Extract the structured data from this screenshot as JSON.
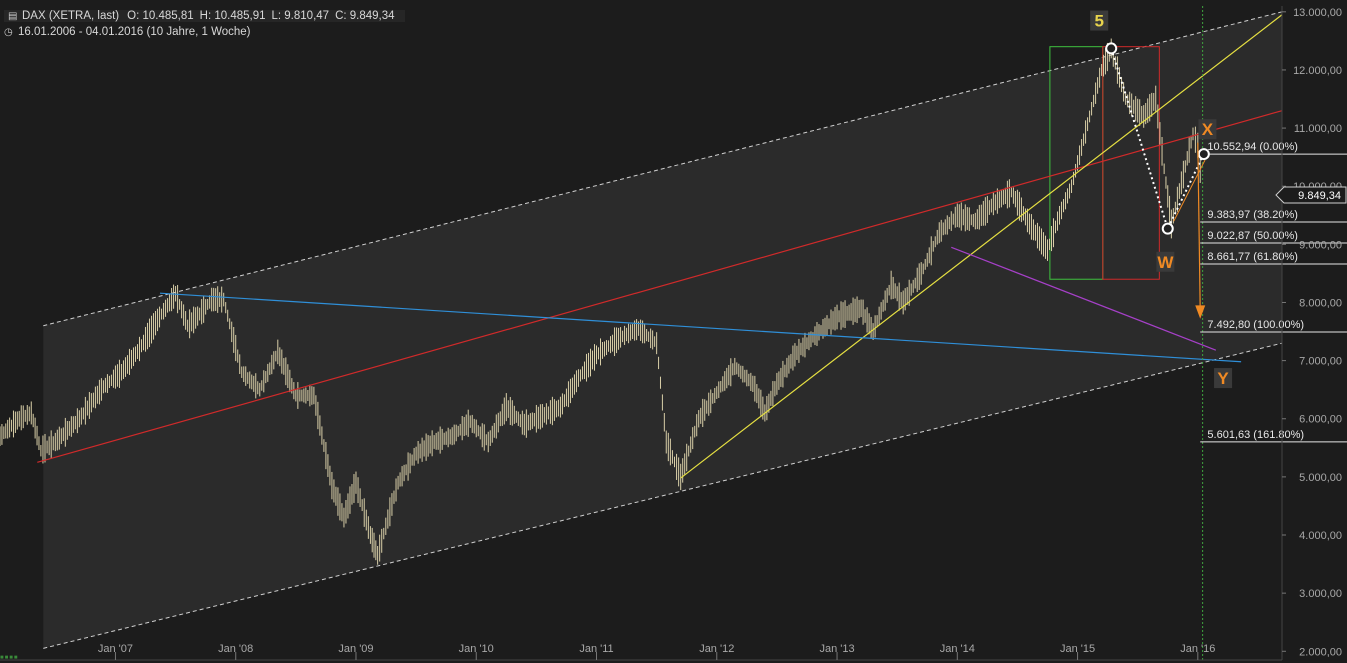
{
  "header": {
    "symbol": "DAX (XETRA, last)",
    "open": "O: 10.485,81",
    "high": "H: 10.485,91",
    "low": "L: 9.810,47",
    "close": "C: 9.849,34",
    "range": "16.01.2006 - 04.01.2016 (10 Jahre, 1 Woche)",
    "chart_icon": "bar-chart-icon",
    "clock_icon": "clock-icon"
  },
  "chart_data": {
    "type": "line",
    "title": "DAX (XETRA, last)",
    "xlabel": "",
    "ylabel": "",
    "x_ticks": [
      "Jan '07",
      "Jan '08",
      "Jan '09",
      "Jan '10",
      "Jan '11",
      "Jan '12",
      "Jan '13",
      "Jan '14",
      "Jan '15",
      "Jan '16"
    ],
    "x_tick_years": [
      2007,
      2008,
      2009,
      2010,
      2011,
      2012,
      2013,
      2014,
      2015,
      2016
    ],
    "x_range": [
      2006.04,
      2016.7
    ],
    "y_ticks": [
      "2.000,00",
      "3.000,00",
      "4.000,00",
      "5.000,00",
      "6.000,00",
      "7.000,00",
      "8.000,00",
      "9.000,00",
      "10.000,00",
      "11.000,00",
      "12.000,00",
      "13.000,00"
    ],
    "y_tick_values": [
      2000,
      3000,
      4000,
      5000,
      6000,
      7000,
      8000,
      9000,
      10000,
      11000,
      12000,
      13000
    ],
    "ylim": [
      1850,
      13100
    ],
    "grid": false,
    "current_price_label": "9.849,34",
    "current_price": 9849.34,
    "series": [
      {
        "color": "#d9cfa8",
        "points": [
          [
            2006.04,
            5700
          ],
          [
            2006.2,
            6000
          ],
          [
            2006.3,
            6100
          ],
          [
            2006.38,
            5450
          ],
          [
            2006.5,
            5600
          ],
          [
            2006.7,
            6000
          ],
          [
            2006.9,
            6550
          ],
          [
            2007.05,
            6800
          ],
          [
            2007.2,
            7200
          ],
          [
            2007.35,
            7700
          ],
          [
            2007.5,
            8150
          ],
          [
            2007.6,
            7600
          ],
          [
            2007.7,
            7800
          ],
          [
            2007.8,
            8050
          ],
          [
            2007.9,
            8050
          ],
          [
            2008.05,
            6800
          ],
          [
            2008.2,
            6500
          ],
          [
            2008.35,
            7150
          ],
          [
            2008.5,
            6400
          ],
          [
            2008.65,
            6400
          ],
          [
            2008.8,
            4850
          ],
          [
            2008.9,
            4300
          ],
          [
            2009.0,
            4900
          ],
          [
            2009.12,
            4000
          ],
          [
            2009.18,
            3650
          ],
          [
            2009.35,
            4900
          ],
          [
            2009.5,
            5400
          ],
          [
            2009.65,
            5600
          ],
          [
            2009.8,
            5700
          ],
          [
            2009.95,
            5950
          ],
          [
            2010.1,
            5600
          ],
          [
            2010.25,
            6200
          ],
          [
            2010.4,
            5900
          ],
          [
            2010.55,
            6050
          ],
          [
            2010.7,
            6200
          ],
          [
            2010.85,
            6700
          ],
          [
            2011.0,
            7100
          ],
          [
            2011.2,
            7400
          ],
          [
            2011.35,
            7550
          ],
          [
            2011.5,
            7300
          ],
          [
            2011.58,
            5600
          ],
          [
            2011.7,
            5000
          ],
          [
            2011.85,
            6000
          ],
          [
            2012.0,
            6450
          ],
          [
            2012.15,
            6900
          ],
          [
            2012.3,
            6600
          ],
          [
            2012.4,
            6100
          ],
          [
            2012.5,
            6600
          ],
          [
            2012.65,
            7100
          ],
          [
            2012.8,
            7400
          ],
          [
            2013.0,
            7750
          ],
          [
            2013.2,
            7900
          ],
          [
            2013.3,
            7500
          ],
          [
            2013.45,
            8300
          ],
          [
            2013.55,
            8000
          ],
          [
            2013.7,
            8500
          ],
          [
            2013.85,
            9200
          ],
          [
            2014.0,
            9500
          ],
          [
            2014.15,
            9400
          ],
          [
            2014.3,
            9700
          ],
          [
            2014.45,
            9900
          ],
          [
            2014.6,
            9350
          ],
          [
            2014.75,
            8900
          ],
          [
            2014.85,
            9500
          ],
          [
            2014.95,
            10000
          ],
          [
            2015.1,
            11200
          ],
          [
            2015.2,
            12000
          ],
          [
            2015.28,
            12370
          ],
          [
            2015.4,
            11500
          ],
          [
            2015.55,
            11200
          ],
          [
            2015.65,
            11500
          ],
          [
            2015.72,
            10300
          ],
          [
            2015.78,
            9350
          ],
          [
            2015.88,
            10200
          ],
          [
            2015.96,
            10900
          ],
          [
            2016.0,
            10700
          ],
          [
            2016.04,
            9849
          ]
        ]
      }
    ],
    "fib_levels": [
      {
        "label": "10.552,94 (0.00%)",
        "value": 10552.94
      },
      {
        "label": "9.383,97 (38.20%)",
        "value": 9383.97
      },
      {
        "label": "9.022,87 (50.00%)",
        "value": 9022.87
      },
      {
        "label": "8.661,77 (61.80%)",
        "value": 8661.77
      },
      {
        "label": "7.492,80 (100.00%)",
        "value": 7492.8
      },
      {
        "label": "5.601,63 (161.80%)",
        "value": 5601.63
      }
    ],
    "wave_labels": [
      {
        "text": "5",
        "x": 2015.18,
        "y": 12850,
        "color": "#e8d44d"
      },
      {
        "text": "X",
        "x": 2016.08,
        "y": 10980,
        "color": "#f08a24"
      },
      {
        "text": "W",
        "x": 2015.73,
        "y": 8700,
        "color": "#f08a24"
      },
      {
        "text": "Y",
        "x": 2016.21,
        "y": 6700,
        "color": "#f08a24"
      }
    ],
    "colors": {
      "background": "#1c1c1c",
      "channel_fill": "#2b2b2b",
      "channel_edge": "#d0d0d0",
      "long_trend": "#d02a2a",
      "support": "#e6e042",
      "blue_trend": "#2f8fd8",
      "purple_trend": "#a640c8",
      "orange": "#f08a24",
      "green_box": "#3fc23f",
      "red_box": "#d02a2a",
      "axis_text": "#a8a8a8",
      "level_line": "#e6e6e6",
      "cursor_line": "#3fa33f"
    }
  }
}
